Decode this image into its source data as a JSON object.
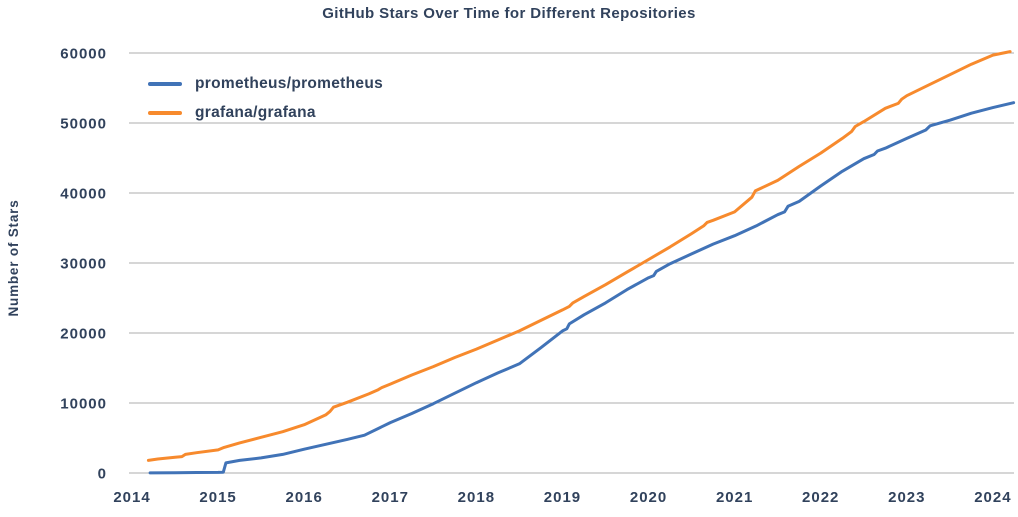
{
  "title": "GitHub Stars Over Time for Different Repositories",
  "y_axis": {
    "label": "Number of Stars"
  },
  "colors": {
    "text": "#31425c",
    "gridline": "#adadad",
    "series_blue": "#4173b7",
    "series_orange": "#f78a2d",
    "background": "#ffffff"
  },
  "chart_data": {
    "type": "line",
    "title": "GitHub Stars Over Time for Different Repositories",
    "xlabel": "",
    "ylabel": "Number of Stars",
    "xlim": [
      2013.965,
      2024.245
    ],
    "ylim": [
      0,
      60000
    ],
    "x_ticks": [
      2014,
      2015,
      2016,
      2017,
      2018,
      2019,
      2020,
      2021,
      2022,
      2023,
      2024
    ],
    "y_ticks": [
      0,
      10000,
      20000,
      30000,
      40000,
      50000,
      60000
    ],
    "grid": "horizontal",
    "legend_position": "top-left-inside",
    "series": [
      {
        "name": "prometheus/prometheus",
        "color": "#4173b7",
        "points": [
          [
            2014.21,
            20
          ],
          [
            2014.5,
            45
          ],
          [
            2014.75,
            70
          ],
          [
            2015.0,
            90
          ],
          [
            2015.06,
            110
          ],
          [
            2015.09,
            1450
          ],
          [
            2015.25,
            1800
          ],
          [
            2015.5,
            2150
          ],
          [
            2015.75,
            2650
          ],
          [
            2016.0,
            3400
          ],
          [
            2016.25,
            4100
          ],
          [
            2016.5,
            4800
          ],
          [
            2016.7,
            5400
          ],
          [
            2017.0,
            7200
          ],
          [
            2017.25,
            8500
          ],
          [
            2017.5,
            9900
          ],
          [
            2017.75,
            11400
          ],
          [
            2018.0,
            12900
          ],
          [
            2018.25,
            14300
          ],
          [
            2018.5,
            15600
          ],
          [
            2018.75,
            17900
          ],
          [
            2019.0,
            20300
          ],
          [
            2019.05,
            20600
          ],
          [
            2019.08,
            21300
          ],
          [
            2019.25,
            22600
          ],
          [
            2019.5,
            24300
          ],
          [
            2019.75,
            26200
          ],
          [
            2020.0,
            27900
          ],
          [
            2020.06,
            28200
          ],
          [
            2020.09,
            28800
          ],
          [
            2020.25,
            29900
          ],
          [
            2020.5,
            31300
          ],
          [
            2020.75,
            32700
          ],
          [
            2021.0,
            33900
          ],
          [
            2021.25,
            35300
          ],
          [
            2021.5,
            36900
          ],
          [
            2021.58,
            37300
          ],
          [
            2021.62,
            38100
          ],
          [
            2021.75,
            38800
          ],
          [
            2022.0,
            41000
          ],
          [
            2022.25,
            43100
          ],
          [
            2022.5,
            44900
          ],
          [
            2022.62,
            45500
          ],
          [
            2022.66,
            46000
          ],
          [
            2022.75,
            46400
          ],
          [
            2023.0,
            47800
          ],
          [
            2023.22,
            49000
          ],
          [
            2023.27,
            49600
          ],
          [
            2023.5,
            50400
          ],
          [
            2023.75,
            51400
          ],
          [
            2024.0,
            52200
          ],
          [
            2024.24,
            52900
          ]
        ]
      },
      {
        "name": "grafana/grafana",
        "color": "#f78a2d",
        "points": [
          [
            2014.19,
            1800
          ],
          [
            2014.3,
            2000
          ],
          [
            2014.5,
            2250
          ],
          [
            2014.58,
            2350
          ],
          [
            2014.62,
            2650
          ],
          [
            2014.75,
            2900
          ],
          [
            2015.0,
            3300
          ],
          [
            2015.07,
            3650
          ],
          [
            2015.25,
            4300
          ],
          [
            2015.5,
            5100
          ],
          [
            2015.75,
            5900
          ],
          [
            2016.0,
            6900
          ],
          [
            2016.25,
            8300
          ],
          [
            2016.3,
            8800
          ],
          [
            2016.34,
            9400
          ],
          [
            2016.5,
            10100
          ],
          [
            2016.75,
            11300
          ],
          [
            2016.86,
            11900
          ],
          [
            2016.9,
            12200
          ],
          [
            2017.0,
            12700
          ],
          [
            2017.25,
            14000
          ],
          [
            2017.5,
            15200
          ],
          [
            2017.75,
            16500
          ],
          [
            2018.0,
            17700
          ],
          [
            2018.25,
            19000
          ],
          [
            2018.5,
            20300
          ],
          [
            2018.75,
            21800
          ],
          [
            2019.0,
            23300
          ],
          [
            2019.08,
            23800
          ],
          [
            2019.12,
            24300
          ],
          [
            2019.25,
            25200
          ],
          [
            2019.5,
            26900
          ],
          [
            2019.75,
            28700
          ],
          [
            2020.0,
            30500
          ],
          [
            2020.25,
            32300
          ],
          [
            2020.5,
            34200
          ],
          [
            2020.64,
            35300
          ],
          [
            2020.68,
            35800
          ],
          [
            2020.75,
            36100
          ],
          [
            2021.0,
            37300
          ],
          [
            2021.2,
            39400
          ],
          [
            2021.24,
            40300
          ],
          [
            2021.5,
            41800
          ],
          [
            2021.75,
            43800
          ],
          [
            2022.0,
            45700
          ],
          [
            2022.25,
            47800
          ],
          [
            2022.36,
            48800
          ],
          [
            2022.4,
            49500
          ],
          [
            2022.5,
            50200
          ],
          [
            2022.75,
            52100
          ],
          [
            2022.9,
            52800
          ],
          [
            2022.94,
            53400
          ],
          [
            2023.0,
            53900
          ],
          [
            2023.25,
            55400
          ],
          [
            2023.5,
            56900
          ],
          [
            2023.75,
            58400
          ],
          [
            2024.0,
            59700
          ],
          [
            2024.2,
            60200
          ]
        ]
      }
    ]
  }
}
